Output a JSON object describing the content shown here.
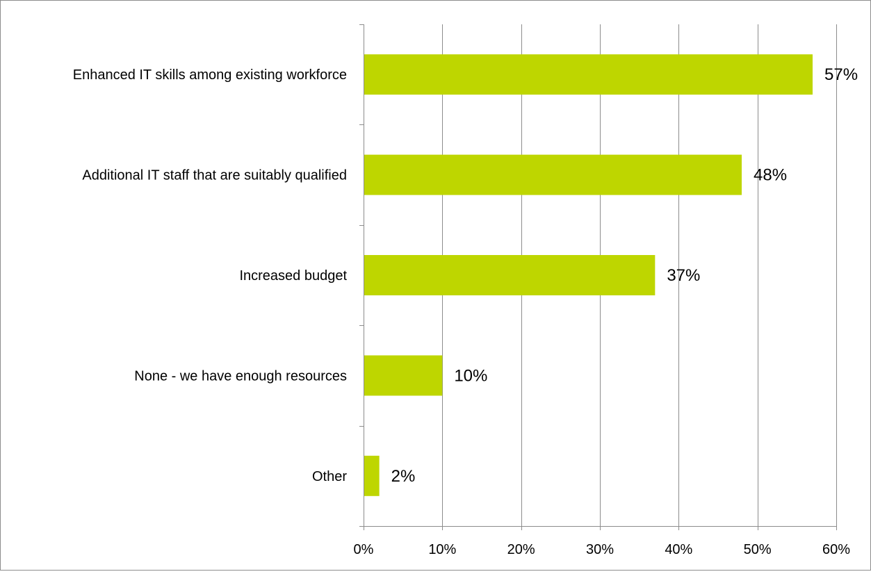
{
  "chart_data": {
    "type": "bar",
    "orientation": "horizontal",
    "categories": [
      "Enhanced IT skills among existing workforce",
      "Additional IT staff that are suitably qualified",
      "Increased budget",
      "None - we have enough resources",
      "Other"
    ],
    "values": [
      57,
      48,
      37,
      10,
      2
    ],
    "data_labels": [
      "57%",
      "48%",
      "37%",
      "10%",
      "2%"
    ],
    "xlim": [
      0,
      60
    ],
    "xticks": [
      0,
      10,
      20,
      30,
      40,
      50,
      60
    ],
    "xtick_labels": [
      "0%",
      "10%",
      "20%",
      "30%",
      "40%",
      "50%",
      "60%"
    ],
    "title": "",
    "xlabel": "",
    "ylabel": "",
    "grid": "vertical",
    "legend": "none",
    "colors": {
      "bar": "#BED600",
      "grid": "#8C8C8C",
      "axis": "#8C8C8C",
      "frame": "#8C8C8C"
    }
  }
}
